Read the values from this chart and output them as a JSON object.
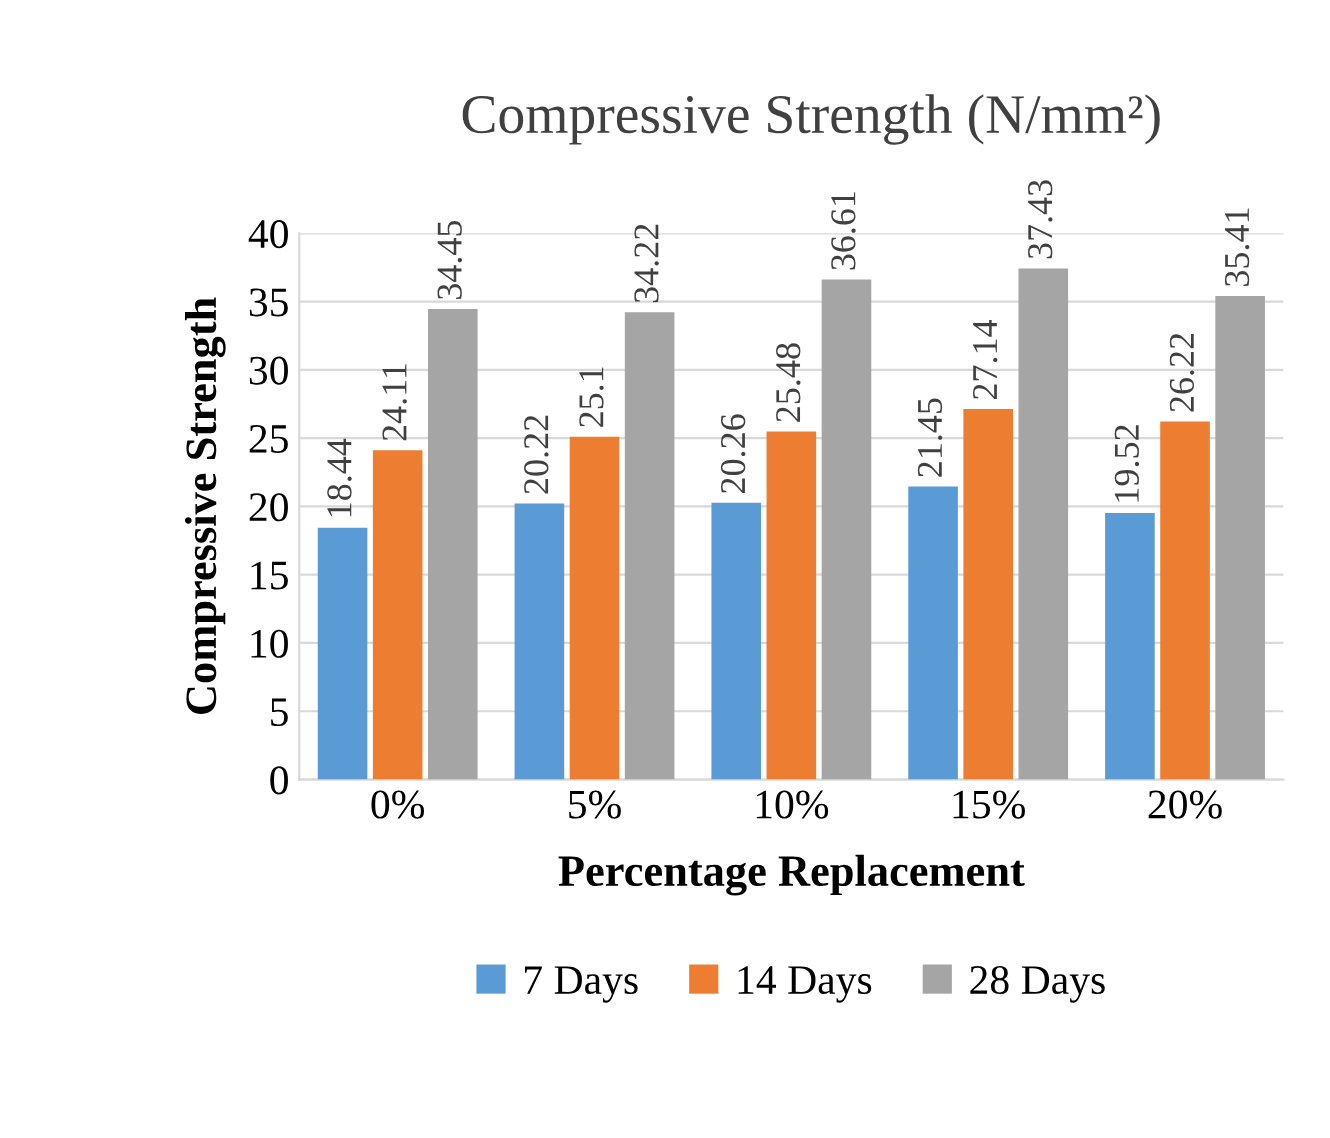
{
  "chart_data": {
    "type": "bar",
    "title": "Compressive Strength (N/mm²)",
    "xlabel": "Percentage Replacement",
    "ylabel": "Compressive Strength",
    "categories": [
      "0%",
      "5%",
      "10%",
      "15%",
      "20%"
    ],
    "series": [
      {
        "name": "7 Days",
        "color": "#5b9bd5",
        "values": [
          18.44,
          20.22,
          20.26,
          21.45,
          19.52
        ]
      },
      {
        "name": "14 Days",
        "color": "#ed7d31",
        "values": [
          24.11,
          25.1,
          25.48,
          27.14,
          26.22
        ]
      },
      {
        "name": "28 Days",
        "color": "#a5a5a5",
        "values": [
          34.45,
          34.22,
          36.61,
          37.43,
          35.41
        ]
      }
    ],
    "ylim": [
      0,
      40
    ],
    "yticks": [
      0,
      5,
      10,
      15,
      20,
      25,
      30,
      35,
      40
    ],
    "grid": "y",
    "legend": "bottom",
    "data_labels": true
  }
}
